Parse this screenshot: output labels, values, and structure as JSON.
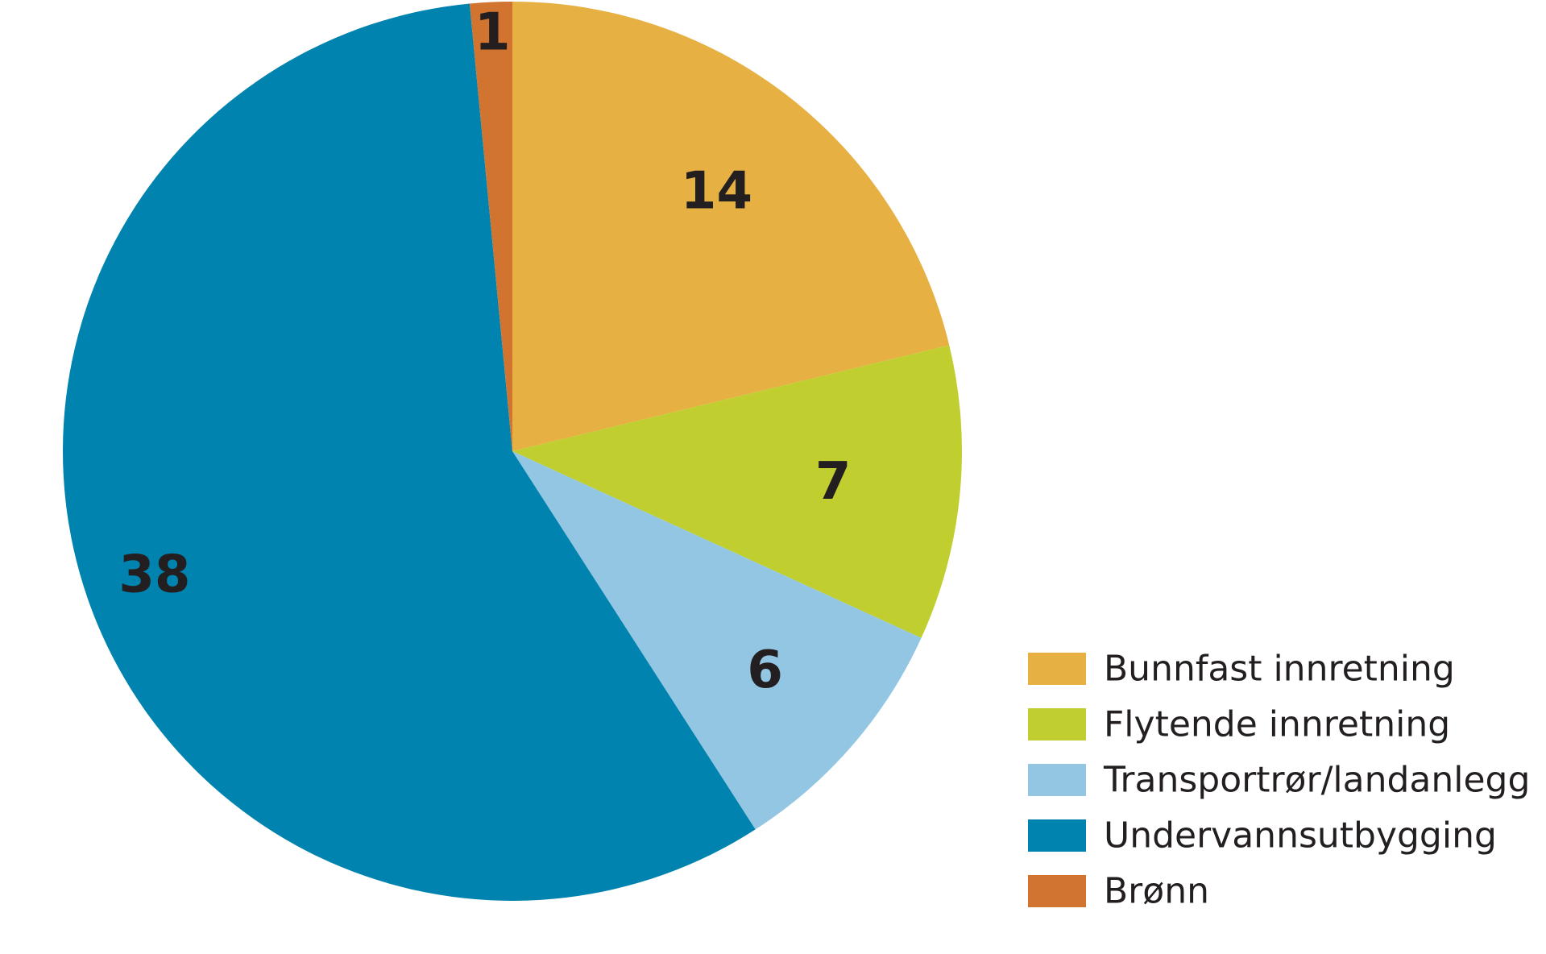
{
  "chart_data": {
    "type": "pie",
    "title": "",
    "slices": [
      {
        "label": "Bunnfast innretning",
        "value": 14,
        "color": "#e6b043"
      },
      {
        "label": "Flytende innretning",
        "value": 7,
        "color": "#c0cf2f"
      },
      {
        "label": "Transportrør/landanlegg",
        "value": 6,
        "color": "#92c6e2"
      },
      {
        "label": "Undervannsutbygging",
        "value": 38,
        "color": "#0083ae"
      },
      {
        "label": "Brønn",
        "value": 1,
        "color": "#d17430"
      }
    ],
    "legend_position": "bottom-right",
    "start_angle_deg": 0,
    "direction": "clockwise"
  }
}
